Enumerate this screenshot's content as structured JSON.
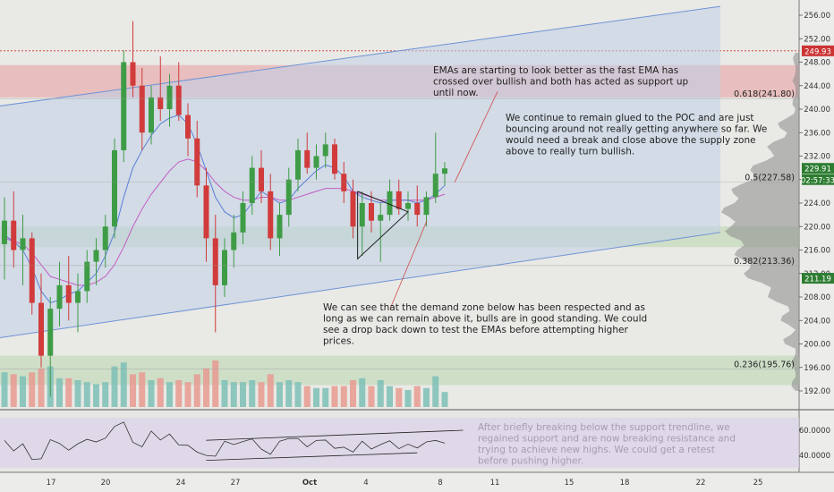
{
  "chart_data": {
    "type": "candlestick",
    "x_tick_labels": [
      "17",
      "20",
      "24",
      "27",
      "Oct",
      "4",
      "8",
      "11",
      "15",
      "18",
      "22",
      "25"
    ],
    "y_tick_labels": [
      "256.00",
      "252.00",
      "248.00",
      "244.00",
      "240.00",
      "236.00",
      "232.00",
      "228.00",
      "224.00",
      "220.00",
      "216.00",
      "212.00",
      "208.00",
      "204.00",
      "200.00",
      "196.00",
      "192.00"
    ],
    "ylim": [
      189,
      258
    ],
    "rsi_tick_labels": [
      "60.0000",
      "40.0000"
    ],
    "price_badges": [
      {
        "text": "249.93",
        "value": 249.93,
        "color": "#cc3333"
      },
      {
        "text": "229.91",
        "value": 229.91,
        "color": "#2e7d32"
      },
      {
        "text": "02:57:33",
        "value": 228.0,
        "color": "#2e7d32"
      },
      {
        "text": "211.19",
        "value": 211.19,
        "color": "#2e7d32"
      }
    ],
    "fib_levels": [
      {
        "label": "0.618(241.80)",
        "value": 241.8
      },
      {
        "label": "0.5(227.58)",
        "value": 227.58
      },
      {
        "label": "0.382(213.36)",
        "value": 213.36
      },
      {
        "label": "0.236(195.76)",
        "value": 195.76
      }
    ],
    "zones": [
      {
        "kind": "supply",
        "from": 242.0,
        "to": 247.5,
        "color": "#e7b7b7"
      },
      {
        "kind": "demand",
        "from": 216.5,
        "to": 220.0,
        "color": "#c9dcc2"
      },
      {
        "kind": "demand",
        "from": 193.0,
        "to": 198.0,
        "color": "#c9dcc2"
      }
    ],
    "channel": {
      "lower": [
        [
          -3,
          200.5
        ],
        [
          80,
          219.0
        ]
      ],
      "upper": [
        [
          -3,
          240.0
        ],
        [
          80,
          257.5
        ]
      ]
    },
    "candles": [
      [
        217.0,
        225.0,
        211.0,
        221.0
      ],
      [
        221.0,
        226.0,
        213.0,
        216.0
      ],
      [
        216.0,
        222.0,
        210.0,
        218.0
      ],
      [
        218.0,
        219.0,
        205.0,
        207.0
      ],
      [
        207.0,
        212.0,
        196.0,
        198.0
      ],
      [
        198.0,
        208.0,
        191.0,
        206.0
      ],
      [
        206.0,
        214.0,
        203.0,
        210.0
      ],
      [
        210.0,
        215.0,
        204.0,
        207.0
      ],
      [
        207.0,
        212.0,
        202.0,
        209.0
      ],
      [
        209.0,
        216.0,
        207.0,
        214.0
      ],
      [
        214.0,
        218.0,
        210.0,
        216.0
      ],
      [
        216.0,
        222.0,
        213.0,
        220.0
      ],
      [
        220.0,
        235.0,
        218.0,
        233.0
      ],
      [
        233.0,
        250.0,
        231.0,
        248.0
      ],
      [
        248.0,
        255.0,
        242.0,
        244.0
      ],
      [
        244.0,
        247.0,
        233.0,
        236.0
      ],
      [
        236.0,
        244.0,
        234.0,
        242.0
      ],
      [
        242.0,
        249.0,
        238.0,
        240.0
      ],
      [
        240.0,
        246.0,
        237.0,
        244.0
      ],
      [
        244.0,
        248.0,
        238.0,
        239.0
      ],
      [
        239.0,
        241.0,
        232.0,
        235.0
      ],
      [
        235.0,
        238.0,
        225.0,
        227.0
      ],
      [
        227.0,
        230.0,
        214.0,
        218.0
      ],
      [
        218.0,
        222.0,
        202.0,
        210.0
      ],
      [
        210.0,
        218.0,
        208.0,
        216.0
      ],
      [
        216.0,
        222.0,
        213.0,
        219.0
      ],
      [
        219.0,
        226.0,
        217.0,
        224.0
      ],
      [
        224.0,
        232.0,
        222.0,
        230.0
      ],
      [
        230.0,
        233.0,
        224.0,
        226.0
      ],
      [
        226.0,
        229.0,
        216.0,
        218.0
      ],
      [
        218.0,
        224.0,
        215.0,
        222.0
      ],
      [
        222.0,
        230.0,
        220.0,
        228.0
      ],
      [
        228.0,
        235.0,
        226.0,
        233.0
      ],
      [
        233.0,
        236.0,
        229.0,
        230.0
      ],
      [
        230.0,
        234.0,
        228.0,
        232.0
      ],
      [
        232.0,
        236.0,
        230.0,
        234.0
      ],
      [
        234.0,
        235.0,
        228.0,
        229.0
      ],
      [
        229.0,
        231.0,
        224.0,
        226.0
      ],
      [
        226.0,
        228.0,
        218.0,
        220.0
      ],
      [
        220.0,
        226.0,
        215.0,
        224.0
      ],
      [
        224.0,
        226.0,
        219.0,
        221.0
      ],
      [
        221.0,
        224.0,
        214.0,
        222.0
      ],
      [
        222.0,
        228.0,
        221.0,
        226.0
      ],
      [
        226.0,
        228.0,
        222.0,
        223.0
      ],
      [
        223.0,
        226.0,
        221.0,
        224.0
      ],
      [
        224.0,
        227.0,
        220.0,
        222.0
      ],
      [
        222.0,
        226.0,
        220.0,
        225.0
      ],
      [
        225.0,
        236.0,
        224.0,
        229.0
      ],
      [
        229.0,
        231.0,
        227.0,
        229.91
      ]
    ],
    "ema_fast": [
      218.5,
      217.5,
      216.0,
      213.0,
      209.0,
      207.0,
      207.5,
      208.5,
      209.0,
      210.5,
      212.0,
      215.0,
      219.0,
      225.0,
      230.0,
      233.0,
      235.5,
      237.5,
      238.5,
      239.0,
      237.5,
      234.0,
      229.5,
      225.0,
      222.5,
      221.5,
      222.0,
      224.0,
      226.0,
      225.0,
      224.0,
      224.5,
      226.5,
      228.0,
      229.5,
      230.5,
      230.0,
      228.5,
      226.0,
      225.0,
      224.5,
      224.0,
      224.5,
      224.5,
      224.5,
      224.0,
      224.5,
      225.5,
      227.0
    ],
    "ema_slow": [
      218.0,
      217.5,
      217.0,
      215.5,
      213.5,
      211.5,
      211.0,
      210.5,
      210.0,
      210.0,
      210.5,
      211.5,
      213.5,
      216.5,
      220.0,
      223.0,
      225.5,
      227.5,
      229.5,
      231.0,
      231.5,
      231.0,
      229.5,
      227.5,
      226.0,
      225.0,
      224.5,
      224.5,
      225.0,
      225.0,
      224.5,
      224.5,
      225.0,
      225.5,
      226.0,
      226.5,
      226.5,
      226.5,
      226.0,
      225.5,
      225.0,
      224.5,
      224.5,
      224.5,
      224.5,
      224.5,
      224.5,
      225.0,
      225.5
    ],
    "annotations": [
      {
        "id": "ema",
        "lines": [
          "EMAs are starting to look better as the fast EMA has",
          "crossed over bullish and both has acted as support up",
          "until now."
        ]
      },
      {
        "id": "poc",
        "lines": [
          "We continue to remain glued to the POC and are just",
          "bouncing around not really getting anywhere so far. We",
          "would need a break and close above the supply zone",
          "above to really turn bullish."
        ]
      },
      {
        "id": "demand",
        "lines": [
          "We can see that the demand zone below has been respected and as",
          "long as we can remain above it, bulls are in good standing. We could",
          "see a drop back down to test the EMAs before attempting higher",
          "prices."
        ]
      },
      {
        "id": "rsi",
        "lines": [
          "After briefly breaking below the support trendline, we",
          "regained support and are now breaking resistance and",
          "trying to achieve new highs. We could get a retest",
          "before pushing higher."
        ]
      }
    ],
    "colors": {
      "up": "#3f9c46",
      "down": "#d13b3b",
      "ema_fast": "#5a7fd8",
      "ema_slow": "#c45cc4",
      "rsi_line": "#333333",
      "rsi_panel": "#dcd2eb"
    }
  }
}
